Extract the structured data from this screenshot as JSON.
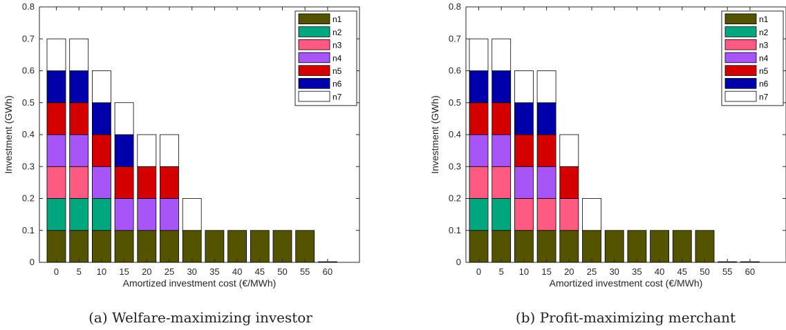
{
  "colors": {
    "n1": "#545400",
    "n2": "#00a67e",
    "n3": "#ff5a82",
    "n4": "#a855f7",
    "n5": "#d40000",
    "n6": "#0000aa",
    "n7": "#ffffff"
  },
  "chart_data": [
    {
      "type": "bar",
      "stacked": true,
      "caption": "(a)  Welfare-maximizing investor",
      "xlabel": "Amortized investment cost (€/MWh)",
      "ylabel": "Investment (GWh)",
      "ylim": [
        0,
        0.8
      ],
      "yticks": [
        "0",
        "0.1",
        "0.2",
        "0.3",
        "0.4",
        "0.5",
        "0.6",
        "0.7",
        "0.8"
      ],
      "categories": [
        "0",
        "5",
        "10",
        "15",
        "20",
        "25",
        "30",
        "35",
        "40",
        "45",
        "50",
        "55",
        "60"
      ],
      "legend_position": "top-right",
      "series": [
        {
          "name": "n1",
          "values": [
            0.1,
            0.1,
            0.1,
            0.1,
            0.1,
            0.1,
            0.1,
            0.1,
            0.1,
            0.1,
            0.1,
            0.1,
            0.002
          ]
        },
        {
          "name": "n2",
          "values": [
            0.1,
            0.1,
            0.1,
            0,
            0,
            0,
            0,
            0,
            0,
            0,
            0,
            0,
            0
          ]
        },
        {
          "name": "n3",
          "values": [
            0.1,
            0.1,
            0,
            0,
            0,
            0,
            0,
            0,
            0,
            0,
            0,
            0,
            0
          ]
        },
        {
          "name": "n4",
          "values": [
            0.1,
            0.1,
            0.1,
            0.1,
            0.1,
            0.1,
            0,
            0,
            0,
            0,
            0,
            0,
            0
          ]
        },
        {
          "name": "n5",
          "values": [
            0.1,
            0.1,
            0.1,
            0.1,
            0.1,
            0.1,
            0,
            0,
            0,
            0,
            0,
            0,
            0
          ]
        },
        {
          "name": "n6",
          "values": [
            0.1,
            0.1,
            0.1,
            0.1,
            0,
            0,
            0,
            0,
            0,
            0,
            0,
            0,
            0
          ]
        },
        {
          "name": "n7",
          "values": [
            0.1,
            0.1,
            0.1,
            0.1,
            0.1,
            0.1,
            0.1,
            0,
            0,
            0,
            0,
            0,
            0
          ]
        }
      ]
    },
    {
      "type": "bar",
      "stacked": true,
      "caption": "(b)  Profit-maximizing merchant",
      "xlabel": "Amortized investment cost (€/MWh)",
      "ylabel": "Investment (GWh)",
      "ylim": [
        0,
        0.8
      ],
      "yticks": [
        "0",
        "0.1",
        "0.2",
        "0.3",
        "0.4",
        "0.5",
        "0.6",
        "0.7",
        "0.8"
      ],
      "categories": [
        "0",
        "5",
        "10",
        "15",
        "20",
        "25",
        "30",
        "35",
        "40",
        "45",
        "50",
        "55",
        "60"
      ],
      "legend_position": "top-right",
      "series": [
        {
          "name": "n1",
          "values": [
            0.1,
            0.1,
            0.1,
            0.1,
            0.1,
            0.1,
            0.1,
            0.1,
            0.1,
            0.1,
            0.1,
            0.002,
            0.002
          ]
        },
        {
          "name": "n2",
          "values": [
            0.1,
            0.1,
            0,
            0,
            0,
            0,
            0,
            0,
            0,
            0,
            0,
            0,
            0
          ]
        },
        {
          "name": "n3",
          "values": [
            0.1,
            0.1,
            0.1,
            0.1,
            0.1,
            0,
            0,
            0,
            0,
            0,
            0,
            0,
            0
          ]
        },
        {
          "name": "n4",
          "values": [
            0.1,
            0.1,
            0.1,
            0.1,
            0,
            0,
            0,
            0,
            0,
            0,
            0,
            0,
            0
          ]
        },
        {
          "name": "n5",
          "values": [
            0.1,
            0.1,
            0.1,
            0.1,
            0.1,
            0,
            0,
            0,
            0,
            0,
            0,
            0,
            0
          ]
        },
        {
          "name": "n6",
          "values": [
            0.1,
            0.1,
            0.1,
            0.1,
            0,
            0,
            0,
            0,
            0,
            0,
            0,
            0,
            0
          ]
        },
        {
          "name": "n7",
          "values": [
            0.1,
            0.1,
            0.1,
            0.1,
            0.1,
            0.1,
            0,
            0,
            0,
            0,
            0,
            0,
            0
          ]
        }
      ]
    }
  ]
}
